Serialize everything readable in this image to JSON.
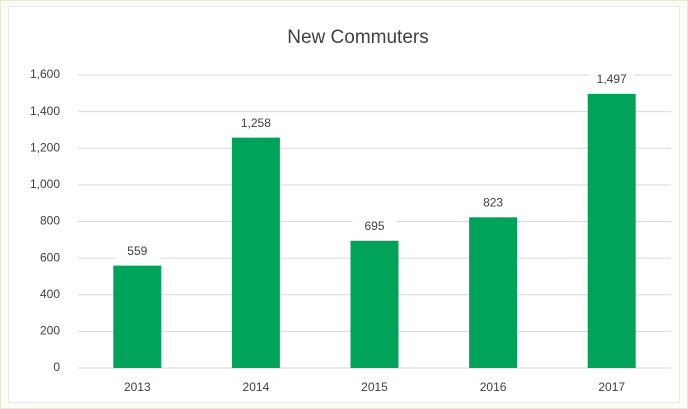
{
  "chart_data": {
    "type": "bar",
    "title": "New Commuters",
    "categories": [
      "2013",
      "2014",
      "2015",
      "2016",
      "2017"
    ],
    "values": [
      559,
      1258,
      695,
      823,
      1497
    ],
    "value_labels": [
      "559",
      "1,258",
      "695",
      "823",
      "1,497"
    ],
    "color": "#00a35a",
    "ylim": [
      0,
      1600
    ],
    "yticks": [
      0,
      200,
      400,
      600,
      800,
      {
        "value": 1000,
        "label": "1,000"
      },
      {
        "value": 1200,
        "label": "1,200"
      },
      {
        "value": 1400,
        "label": "1,400"
      },
      {
        "value": 1600,
        "label": "1,600"
      }
    ],
    "grid": true
  }
}
